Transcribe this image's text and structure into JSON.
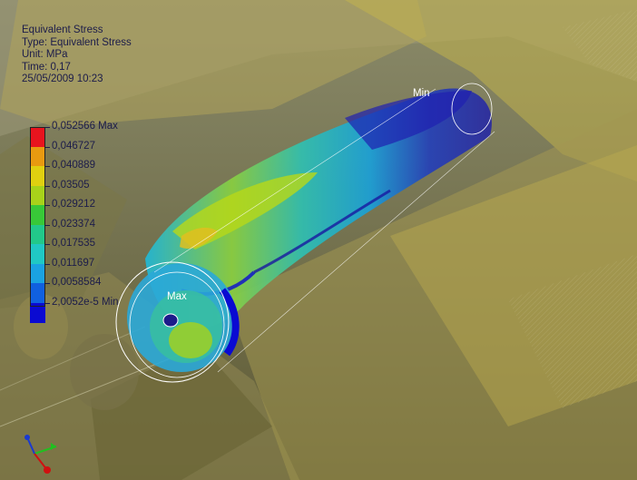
{
  "result_header": {
    "title": "Equivalent Stress",
    "type_line": "Type: Equivalent Stress",
    "unit_line": "Unit: MPa",
    "time_line": "Time: 0,17",
    "date_line": "25/05/2009 10:23"
  },
  "legend": {
    "entries": [
      {
        "label": "0,052566 Max",
        "color": "#e8141e"
      },
      {
        "label": "0,046727",
        "color": "#e89a10"
      },
      {
        "label": "0,040889",
        "color": "#e0d010"
      },
      {
        "label": "0,03505",
        "color": "#a8d21a"
      },
      {
        "label": "0,029212",
        "color": "#38c838"
      },
      {
        "label": "0,023374",
        "color": "#22c88a"
      },
      {
        "label": "0,017535",
        "color": "#20c8c4"
      },
      {
        "label": "0,011697",
        "color": "#1aa2e2"
      },
      {
        "label": "0,0058584",
        "color": "#1060e0"
      },
      {
        "label": "2,0052e-5 Min",
        "color": "#0a0ad2"
      }
    ]
  },
  "probes": {
    "min_label": "Min",
    "max_label": "Max"
  },
  "colors": {
    "assembly_tint": "#c8b84a",
    "background": "#6e6a3e",
    "label_text": "#1c1c4a"
  }
}
